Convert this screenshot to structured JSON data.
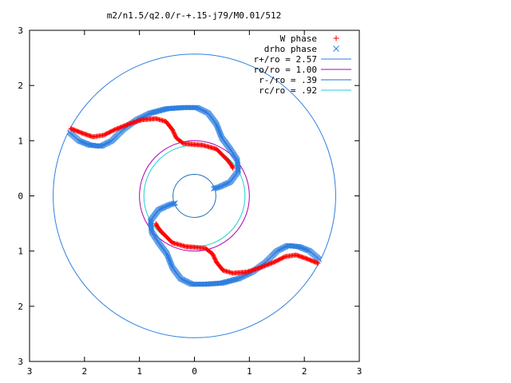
{
  "chart_data": {
    "type": "scatter",
    "title": "m2/n1.5/q2.0/r-+.15-j79/M0.01/512",
    "xlabel": "",
    "ylabel": "",
    "xlim": [
      -3,
      3
    ],
    "ylim": [
      -3,
      3
    ],
    "x_ticks": [
      -3,
      -2,
      -1,
      0,
      1,
      2,
      3
    ],
    "y_ticks": [
      -3,
      -2,
      -1,
      0,
      1,
      2,
      3
    ],
    "x_tick_labels": [
      "3",
      "2",
      "1",
      "0",
      "1",
      "2",
      "3"
    ],
    "y_tick_labels": [
      "3",
      "2",
      "1",
      "0",
      "1",
      "2",
      "3"
    ],
    "grid": false,
    "legend_position": "top-right",
    "series": [
      {
        "name": "W phase",
        "marker": "+",
        "color": "#ff0000",
        "points": [
          [
            -2.25,
            1.22
          ],
          [
            -2.05,
            1.14
          ],
          [
            -1.85,
            1.07
          ],
          [
            -1.65,
            1.1
          ],
          [
            -1.45,
            1.2
          ],
          [
            -1.2,
            1.3
          ],
          [
            -0.95,
            1.38
          ],
          [
            -0.7,
            1.4
          ],
          [
            -0.52,
            1.35
          ],
          [
            -0.4,
            1.2
          ],
          [
            -0.33,
            1.05
          ],
          [
            -0.2,
            0.95
          ],
          [
            0.0,
            0.93
          ],
          [
            0.15,
            0.92
          ],
          [
            0.4,
            0.85
          ],
          [
            0.6,
            0.65
          ],
          [
            0.68,
            0.55
          ],
          [
            0.7,
            0.5
          ],
          [
            2.25,
            -1.22
          ],
          [
            2.05,
            -1.14
          ],
          [
            1.85,
            -1.07
          ],
          [
            1.65,
            -1.1
          ],
          [
            1.45,
            -1.2
          ],
          [
            1.2,
            -1.3
          ],
          [
            0.95,
            -1.38
          ],
          [
            0.7,
            -1.4
          ],
          [
            0.52,
            -1.35
          ],
          [
            0.4,
            -1.2
          ],
          [
            0.33,
            -1.05
          ],
          [
            0.2,
            -0.95
          ],
          [
            0.0,
            -0.93
          ],
          [
            -0.15,
            -0.92
          ],
          [
            -0.4,
            -0.85
          ],
          [
            -0.6,
            -0.65
          ],
          [
            -0.68,
            -0.55
          ],
          [
            -0.7,
            -0.5
          ]
        ]
      },
      {
        "name": "drho phase",
        "marker": "x",
        "color": "#2f7fe0",
        "points": [
          [
            -2.27,
            1.15
          ],
          [
            -2.1,
            1.0
          ],
          [
            -1.9,
            0.92
          ],
          [
            -1.7,
            0.9
          ],
          [
            -1.5,
            1.0
          ],
          [
            -1.3,
            1.2
          ],
          [
            -1.05,
            1.38
          ],
          [
            -0.8,
            1.5
          ],
          [
            -0.5,
            1.58
          ],
          [
            -0.2,
            1.6
          ],
          [
            0.05,
            1.6
          ],
          [
            0.25,
            1.5
          ],
          [
            0.4,
            1.3
          ],
          [
            0.5,
            1.05
          ],
          [
            0.65,
            0.85
          ],
          [
            0.78,
            0.65
          ],
          [
            0.8,
            0.45
          ],
          [
            0.65,
            0.25
          ],
          [
            0.45,
            0.16
          ],
          [
            0.35,
            0.13
          ],
          [
            2.27,
            -1.15
          ],
          [
            2.1,
            -1.0
          ],
          [
            1.9,
            -0.92
          ],
          [
            1.7,
            -0.9
          ],
          [
            1.5,
            -1.0
          ],
          [
            1.3,
            -1.2
          ],
          [
            1.05,
            -1.38
          ],
          [
            0.8,
            -1.5
          ],
          [
            0.5,
            -1.58
          ],
          [
            0.2,
            -1.6
          ],
          [
            -0.05,
            -1.6
          ],
          [
            -0.25,
            -1.5
          ],
          [
            -0.4,
            -1.3
          ],
          [
            -0.5,
            -1.05
          ],
          [
            -0.65,
            -0.85
          ],
          [
            -0.78,
            -0.65
          ],
          [
            -0.8,
            -0.45
          ],
          [
            -0.65,
            -0.25
          ],
          [
            -0.45,
            -0.16
          ],
          [
            -0.35,
            -0.13
          ]
        ]
      },
      {
        "name": "r+/ro = 2.57",
        "type": "circle",
        "radius": 2.57,
        "color": "#2f7fe0"
      },
      {
        "name": "ro/ro = 1.00",
        "type": "circle",
        "radius": 1.0,
        "color": "#b000b0"
      },
      {
        "name": "r-/ro = .39",
        "type": "circle",
        "radius": 0.39,
        "color": "#1f6fbf"
      },
      {
        "name": "rc/ro = .92",
        "type": "circle",
        "radius": 0.92,
        "color": "#20d0d0"
      }
    ]
  }
}
